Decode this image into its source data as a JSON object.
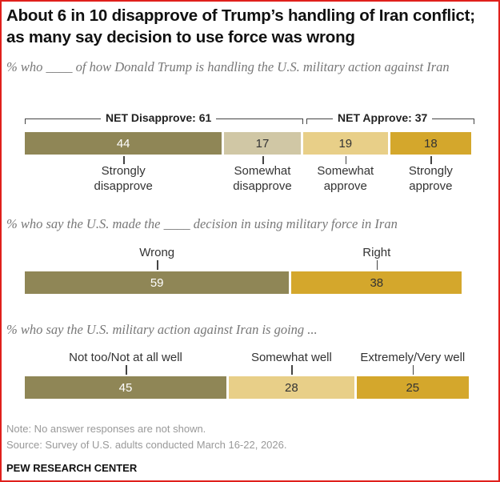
{
  "title": "About 6 in 10 disapprove of Trump’s handling of Iran conflict; as many say decision to use force was wrong",
  "colors": {
    "dark": "#8f8656",
    "tan": "#d0c7a5",
    "light_gold": "#e8cf88",
    "gold": "#d4a72c"
  },
  "chart_data": [
    {
      "type": "bar",
      "subtitle": "% who ____ of how Donald Trump is handling the U.S. military action against Iran",
      "net": [
        {
          "label": "NET Disapprove: 61"
        },
        {
          "label": "NET Approve: 37"
        }
      ],
      "segments": [
        {
          "label": "Strongly disapprove",
          "value": 44,
          "color": "#8f8656"
        },
        {
          "label": "Somewhat disapprove",
          "value": 17,
          "color": "#d0c7a5"
        },
        {
          "label": "Somewhat approve",
          "value": 19,
          "color": "#e8cf88"
        },
        {
          "label": "Strongly approve",
          "value": 18,
          "color": "#d4a72c"
        }
      ]
    },
    {
      "type": "bar",
      "subtitle": "% who say the U.S. made the ____ decision in using military force in Iran",
      "segments": [
        {
          "label": "Wrong",
          "value": 59,
          "color": "#8f8656"
        },
        {
          "label": "Right",
          "value": 38,
          "color": "#d4a72c"
        }
      ]
    },
    {
      "type": "bar",
      "subtitle": "% who say the U.S. military action against Iran is going ...",
      "segments": [
        {
          "label": "Not too/Not at all well",
          "value": 45,
          "color": "#8f8656"
        },
        {
          "label": "Somewhat well",
          "value": 28,
          "color": "#e8cf88"
        },
        {
          "label": "Extremely/Very well",
          "value": 25,
          "color": "#d4a72c"
        }
      ]
    }
  ],
  "note": "Note: No answer responses are not shown.",
  "source": "Source: Survey of U.S. adults conducted March 16-22, 2026.",
  "brand": "PEW RESEARCH CENTER"
}
